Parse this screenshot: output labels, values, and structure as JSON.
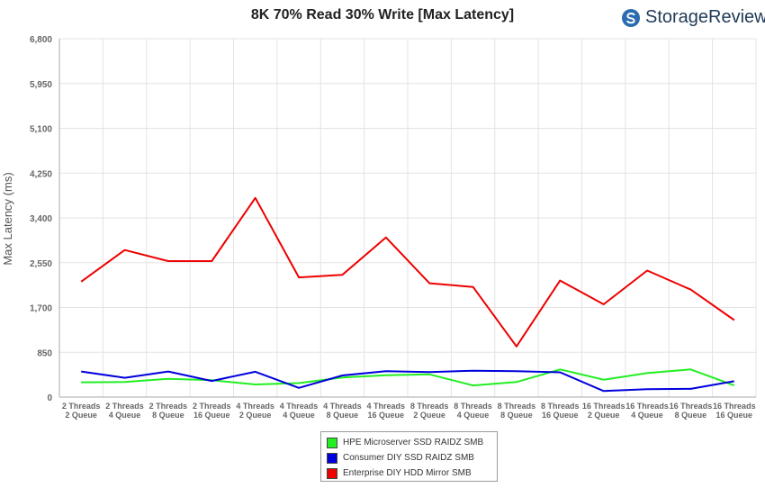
{
  "title": "8K 70% Read 30% Write [Max Latency]",
  "logo": {
    "text": "StorageReview",
    "icon": "storagereview-logo-icon",
    "color": "#2b6cb0"
  },
  "chart_data": {
    "type": "line",
    "title": "8K 70% Read 30% Write [Max Latency]",
    "ylabel": "Max Latency  (ms)",
    "xlabel": "",
    "ylim": [
      0,
      6800
    ],
    "yticks": [
      0,
      850,
      1700,
      2550,
      3400,
      4250,
      5100,
      5950,
      6800
    ],
    "ytick_labels": [
      "0",
      "850",
      "1,700",
      "2,550",
      "3,400",
      "4,250",
      "5,100",
      "5,950",
      "6,800"
    ],
    "grid": true,
    "legend_position": "bottom",
    "categories": [
      [
        "2 Threads",
        "2 Queue"
      ],
      [
        "2 Threads",
        "4 Queue"
      ],
      [
        "2 Threads",
        "8 Queue"
      ],
      [
        "2 Threads",
        "16 Queue"
      ],
      [
        "4 Threads",
        "2 Queue"
      ],
      [
        "4 Threads",
        "4 Queue"
      ],
      [
        "4 Threads",
        "8 Queue"
      ],
      [
        "4 Threads",
        "16 Queue"
      ],
      [
        "8 Threads",
        "2 Queue"
      ],
      [
        "8 Threads",
        "4 Queue"
      ],
      [
        "8 Threads",
        "8 Queue"
      ],
      [
        "8 Threads",
        "16 Queue"
      ],
      [
        "16 Threads",
        "2 Queue"
      ],
      [
        "16 Threads",
        "4 Queue"
      ],
      [
        "16 Threads",
        "8 Queue"
      ],
      [
        "16 Threads",
        "16 Queue"
      ]
    ],
    "series": [
      {
        "name": "HPE Microserver SSD RAIDZ SMB",
        "color": "#22ee22",
        "values": [
          280,
          285,
          345,
          320,
          240,
          265,
          370,
          415,
          430,
          220,
          285,
          525,
          330,
          455,
          525,
          220
        ]
      },
      {
        "name": "Consumer DIY SSD RAIDZ SMB",
        "color": "#0000dd",
        "values": [
          485,
          365,
          485,
          305,
          480,
          175,
          410,
          490,
          475,
          500,
          490,
          470,
          115,
          150,
          155,
          300
        ]
      },
      {
        "name": "Enterprise DIY HDD Mirror SMB",
        "color": "#ee0000",
        "values": [
          2190,
          2790,
          2580,
          2580,
          3780,
          2270,
          2320,
          3030,
          2160,
          2090,
          960,
          2210,
          1760,
          2400,
          2040,
          1460
        ]
      }
    ]
  }
}
